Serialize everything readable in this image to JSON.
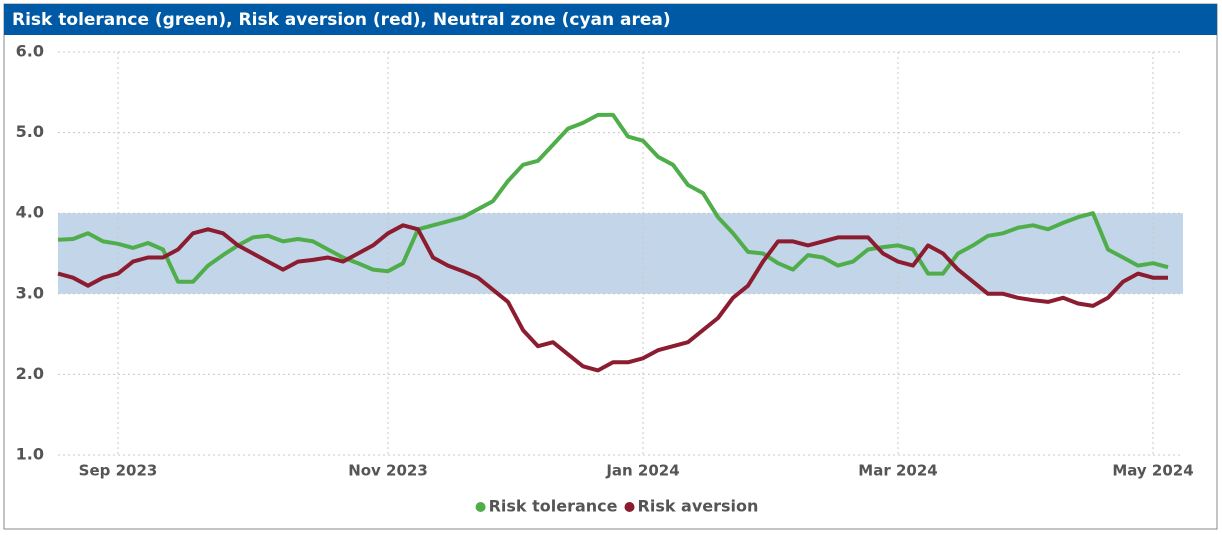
{
  "chart_data": {
    "type": "line",
    "title": "Risk tolerance (green), Risk aversion (red), Neutral zone (cyan area)",
    "categories": [
      null,
      null,
      null,
      null,
      "Sep 2023",
      null,
      null,
      null,
      null,
      null,
      null,
      null,
      null,
      null,
      null,
      null,
      null,
      null,
      null,
      null,
      null,
      null,
      "Nov 2023",
      null,
      null,
      null,
      null,
      null,
      null,
      null,
      null,
      null,
      null,
      null,
      null,
      null,
      null,
      null,
      null,
      "Jan 2024",
      null,
      null,
      null,
      null,
      null,
      null,
      null,
      null,
      null,
      null,
      null,
      null,
      null,
      null,
      null,
      null,
      "Mar 2024",
      null,
      null,
      null,
      null,
      null,
      null,
      null,
      null,
      null,
      null,
      null,
      null,
      null,
      null,
      null,
      null,
      "May 2024",
      null
    ],
    "series": [
      {
        "name": "Risk tolerance",
        "color": "#4fae4a",
        "values": [
          3.67,
          3.68,
          3.75,
          3.65,
          3.62,
          3.57,
          3.63,
          3.55,
          3.15,
          3.15,
          3.35,
          3.48,
          3.6,
          3.7,
          3.72,
          3.65,
          3.68,
          3.65,
          3.55,
          3.45,
          3.38,
          3.3,
          3.28,
          3.38,
          3.8,
          3.85,
          3.9,
          3.95,
          4.05,
          4.15,
          4.4,
          4.6,
          4.65,
          4.85,
          5.05,
          5.12,
          5.22,
          5.22,
          4.95,
          4.9,
          4.7,
          4.6,
          4.35,
          4.25,
          3.95,
          3.75,
          3.52,
          3.5,
          3.38,
          3.3,
          3.48,
          3.45,
          3.35,
          3.4,
          3.55,
          3.58,
          3.6,
          3.55,
          3.25,
          3.25,
          3.5,
          3.6,
          3.72,
          3.75,
          3.82,
          3.85,
          3.8,
          3.88,
          3.95,
          4.0,
          3.55,
          3.45,
          3.35,
          3.38,
          3.33
        ]
      },
      {
        "name": "Risk aversion",
        "color": "#8c1c30",
        "values": [
          3.25,
          3.2,
          3.1,
          3.2,
          3.25,
          3.4,
          3.45,
          3.45,
          3.55,
          3.75,
          3.8,
          3.75,
          3.6,
          3.5,
          3.4,
          3.3,
          3.4,
          3.42,
          3.45,
          3.4,
          3.5,
          3.6,
          3.75,
          3.85,
          3.8,
          3.45,
          3.35,
          3.28,
          3.2,
          3.05,
          2.9,
          2.55,
          2.35,
          2.4,
          2.25,
          2.1,
          2.05,
          2.15,
          2.15,
          2.2,
          2.3,
          2.35,
          2.4,
          2.55,
          2.7,
          2.95,
          3.1,
          3.4,
          3.65,
          3.65,
          3.6,
          3.65,
          3.7,
          3.7,
          3.7,
          3.5,
          3.4,
          3.35,
          3.6,
          3.5,
          3.3,
          3.15,
          3.0,
          3.0,
          2.95,
          2.92,
          2.9,
          2.95,
          2.88,
          2.85,
          2.95,
          3.15,
          3.25,
          3.2,
          3.2
        ]
      }
    ],
    "neutral_zone": {
      "from": 3,
      "to": 4,
      "color": "#c3d5e8"
    },
    "ylim": [
      1,
      6
    ],
    "yticks": [
      {
        "value": 1,
        "label": "1.0"
      },
      {
        "value": 2,
        "label": "2.0"
      },
      {
        "value": 3,
        "label": "3.0"
      },
      {
        "value": 4,
        "label": "4.0"
      },
      {
        "value": 5,
        "label": "5.0"
      },
      {
        "value": 6,
        "label": "6.0"
      }
    ],
    "grid": true
  }
}
